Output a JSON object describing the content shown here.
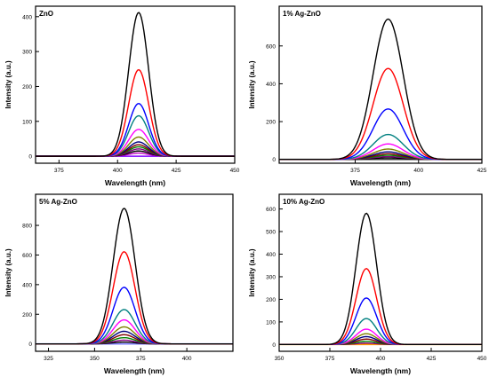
{
  "chart_data": [
    {
      "type": "line",
      "title": "ZnO",
      "xlabel": "Wavelength (nm)",
      "ylabel": "Intensity (a.u.)",
      "xlim": [
        365,
        450
      ],
      "ylim": [
        -20,
        430
      ],
      "xticks": [
        375,
        400,
        425,
        450
      ],
      "yticks": [
        0,
        100,
        200,
        300,
        400
      ],
      "peak_wavelength": 409,
      "peak_fwhm": 10,
      "grid": false,
      "series": [
        {
          "peak": 412,
          "color": "#000000"
        },
        {
          "peak": 248,
          "color": "#ff0000"
        },
        {
          "peak": 151,
          "color": "#0000ff"
        },
        {
          "peak": 116,
          "color": "#008080"
        },
        {
          "peak": 77,
          "color": "#ff00ff"
        },
        {
          "peak": 55,
          "color": "#808000"
        },
        {
          "peak": 41,
          "color": "#000080"
        },
        {
          "peak": 33,
          "color": "#800000"
        },
        {
          "peak": 27,
          "color": "#008000"
        },
        {
          "peak": 21,
          "color": "#800080"
        },
        {
          "peak": 15,
          "color": "#000000"
        },
        {
          "peak": 9,
          "color": "#c000c0"
        },
        {
          "peak": 0,
          "color": "#8000ff"
        }
      ]
    },
    {
      "type": "line",
      "title": "1% Ag-ZnO",
      "xlabel": "Wavelength (nm)",
      "ylabel": "Intensity (a.u.)",
      "xlim": [
        345,
        425
      ],
      "ylim": [
        -20,
        810
      ],
      "xticks": [
        375,
        400,
        425
      ],
      "yticks": [
        0,
        200,
        400,
        600
      ],
      "peak_wavelength": 388,
      "peak_fwhm": 14,
      "grid": false,
      "series": [
        {
          "peak": 742,
          "color": "#000000"
        },
        {
          "peak": 481,
          "color": "#ff0000"
        },
        {
          "peak": 267,
          "color": "#0000ff"
        },
        {
          "peak": 132,
          "color": "#008080"
        },
        {
          "peak": 82,
          "color": "#ff00ff"
        },
        {
          "peak": 55,
          "color": "#808000"
        },
        {
          "peak": 40,
          "color": "#000080"
        },
        {
          "peak": 30,
          "color": "#800000"
        },
        {
          "peak": 22,
          "color": "#008000"
        },
        {
          "peak": 15,
          "color": "#800080"
        },
        {
          "peak": 8,
          "color": "#000000"
        },
        {
          "peak": 0,
          "color": "#404040"
        }
      ]
    },
    {
      "type": "line",
      "title": "5% Ag-ZnO",
      "xlabel": "Wavelength (nm)",
      "ylabel": "Intensity (a.u.)",
      "xlim": [
        318,
        425
      ],
      "ylim": [
        -50,
        1010
      ],
      "xticks": [
        325,
        350,
        375,
        400
      ],
      "yticks": [
        0,
        200,
        400,
        600,
        800
      ],
      "peak_wavelength": 366,
      "peak_fwhm": 14,
      "grid": false,
      "series": [
        {
          "peak": 915,
          "color": "#000000"
        },
        {
          "peak": 622,
          "color": "#ff0000"
        },
        {
          "peak": 382,
          "color": "#0000ff"
        },
        {
          "peak": 232,
          "color": "#008080"
        },
        {
          "peak": 162,
          "color": "#ff00ff"
        },
        {
          "peak": 115,
          "color": "#808000"
        },
        {
          "peak": 85,
          "color": "#000080"
        },
        {
          "peak": 62,
          "color": "#800000"
        },
        {
          "peak": 42,
          "color": "#008000"
        },
        {
          "peak": 25,
          "color": "#800080"
        },
        {
          "peak": 12,
          "color": "#000000"
        },
        {
          "peak": 0,
          "color": "#8080ff"
        }
      ]
    },
    {
      "type": "line",
      "title": "10% Ag-ZnO",
      "xlabel": "Wavelength (nm)",
      "ylabel": "Intensity (a.u.)",
      "xlim": [
        350,
        450
      ],
      "ylim": [
        -30,
        665
      ],
      "xticks": [
        350,
        375,
        400,
        425,
        450
      ],
      "yticks": [
        0,
        100,
        200,
        300,
        400,
        500,
        600
      ],
      "peak_wavelength": 393,
      "peak_fwhm": 12,
      "grid": false,
      "series": [
        {
          "peak": 581,
          "color": "#000000"
        },
        {
          "peak": 336,
          "color": "#ff0000"
        },
        {
          "peak": 206,
          "color": "#0000ff"
        },
        {
          "peak": 115,
          "color": "#008080"
        },
        {
          "peak": 68,
          "color": "#ff00ff"
        },
        {
          "peak": 48,
          "color": "#808000"
        },
        {
          "peak": 35,
          "color": "#000080"
        },
        {
          "peak": 24,
          "color": "#800000"
        },
        {
          "peak": 14,
          "color": "#008000"
        },
        {
          "peak": 6,
          "color": "#800080"
        },
        {
          "peak": 0,
          "color": "#ff9900"
        }
      ]
    }
  ]
}
